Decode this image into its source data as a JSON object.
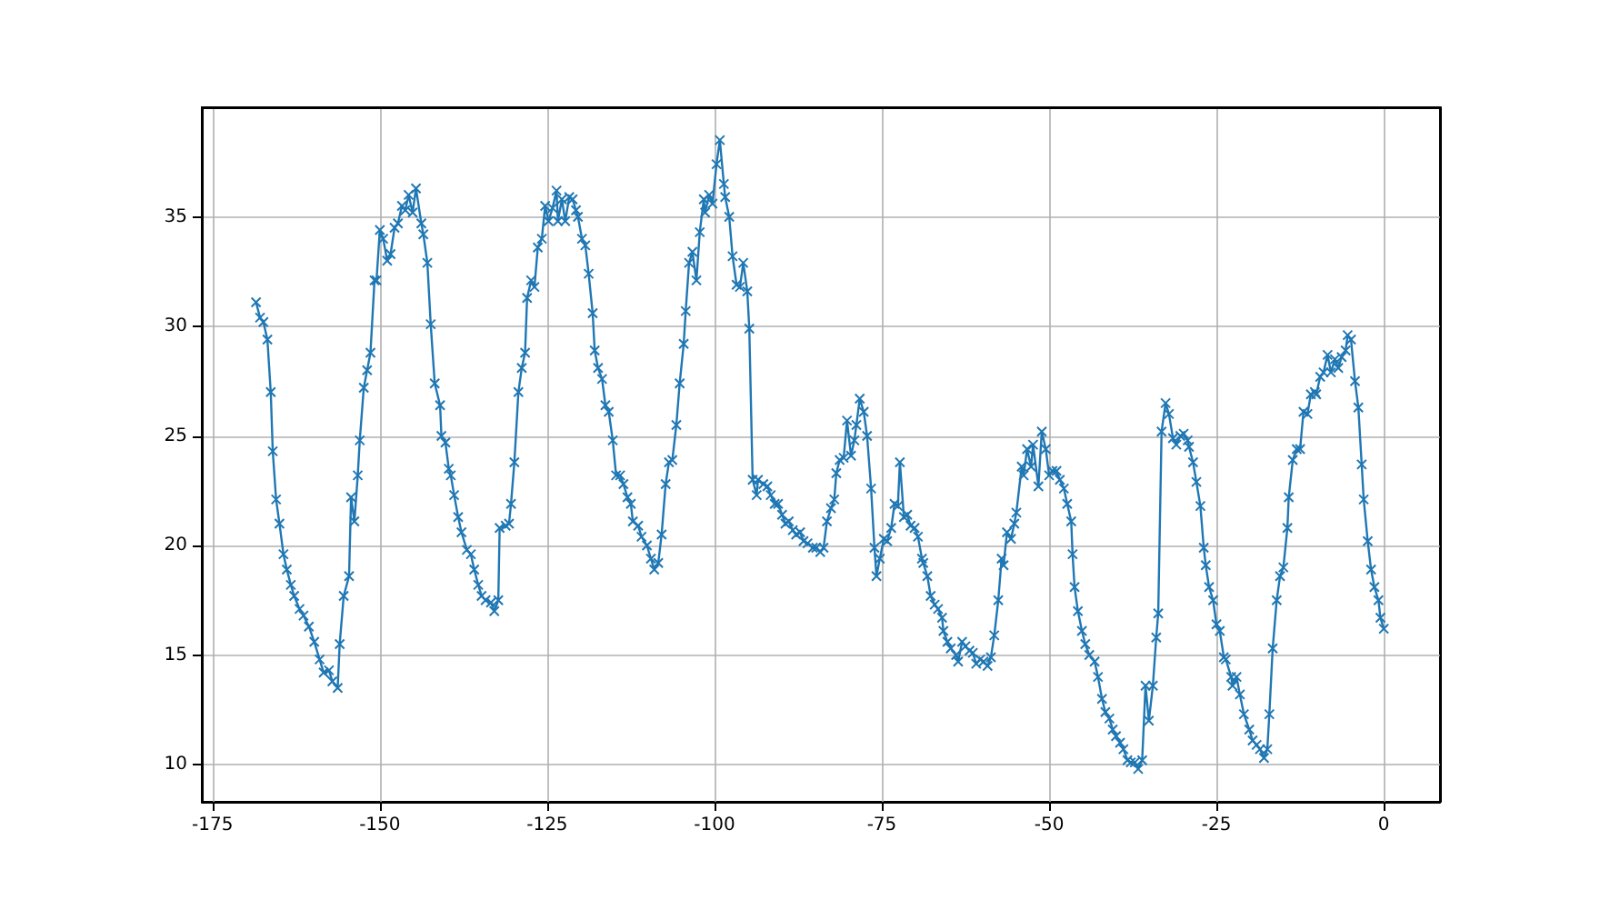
{
  "chart_data": {
    "type": "line",
    "color": "#1f77b4",
    "marker": "cross",
    "line_style": "solid",
    "grid": true,
    "xlim": [
      -176.6,
      8.4
    ],
    "xticks": [
      -175,
      -150,
      -125,
      -100,
      -75,
      -50,
      -25,
      0
    ],
    "ylim": [
      8.3,
      40.0
    ],
    "yticks": [
      10,
      15,
      20,
      25,
      30,
      35
    ],
    "x": [
      -168.5,
      -167.9,
      -167.4,
      -166.8,
      -166.3,
      -166.0,
      -165.5,
      -165.0,
      -164.4,
      -163.9,
      -163.3,
      -162.8,
      -162.0,
      -161.4,
      -160.6,
      -159.8,
      -159.0,
      -158.4,
      -157.6,
      -157.1,
      -156.3,
      -156.0,
      -155.4,
      -154.6,
      -154.3,
      -153.8,
      -153.3,
      -153.0,
      -152.4,
      -151.9,
      -151.4,
      -150.8,
      -150.5,
      -150.0,
      -149.5,
      -148.9,
      -148.4,
      -147.8,
      -147.3,
      -146.7,
      -146.2,
      -145.7,
      -145.1,
      -144.6,
      -143.8,
      -143.5,
      -142.9,
      -142.4,
      -141.8,
      -141.0,
      -140.8,
      -140.2,
      -139.7,
      -139.4,
      -138.9,
      -138.3,
      -137.8,
      -137.0,
      -136.4,
      -135.9,
      -135.3,
      -134.8,
      -134.2,
      -133.4,
      -132.9,
      -132.3,
      -132.1,
      -131.2,
      -130.7,
      -130.4,
      -129.9,
      -129.3,
      -128.8,
      -128.3,
      -128.0,
      -127.4,
      -126.9,
      -126.4,
      -125.8,
      -125.3,
      -124.8,
      -124.2,
      -123.6,
      -123.4,
      -122.8,
      -122.3,
      -121.7,
      -121.2,
      -120.7,
      -120.4,
      -119.8,
      -119.3,
      -118.8,
      -118.2,
      -117.9,
      -117.4,
      -116.8,
      -116.3,
      -115.8,
      -115.2,
      -114.7,
      -114.1,
      -113.6,
      -113.0,
      -112.5,
      -112.2,
      -111.4,
      -110.9,
      -110.1,
      -109.5,
      -109.0,
      -108.4,
      -107.9,
      -107.3,
      -106.8,
      -106.3,
      -105.7,
      -105.2,
      -104.6,
      -104.3,
      -103.8,
      -103.3,
      -102.7,
      -102.2,
      -101.6,
      -101.4,
      -100.8,
      -100.3,
      -99.7,
      -99.2,
      -98.6,
      -98.4,
      -97.8,
      -97.3,
      -96.7,
      -96.2,
      -95.7,
      -95.1,
      -94.8,
      -94.3,
      -93.7,
      -93.5,
      -92.7,
      -92.1,
      -91.6,
      -91.0,
      -90.5,
      -89.9,
      -89.4,
      -88.9,
      -88.3,
      -87.8,
      -87.2,
      -86.7,
      -86.1,
      -85.3,
      -84.8,
      -84.2,
      -83.7,
      -83.2,
      -82.6,
      -82.1,
      -81.8,
      -81.3,
      -80.7,
      -80.2,
      -79.6,
      -79.1,
      -78.8,
      -78.3,
      -77.7,
      -77.2,
      -76.6,
      -76.1,
      -75.8,
      -75.3,
      -74.7,
      -74.2,
      -73.6,
      -73.1,
      -72.6,
      -72.3,
      -71.7,
      -71.2,
      -70.7,
      -70.1,
      -69.6,
      -69.0,
      -68.8,
      -68.2,
      -67.7,
      -67.1,
      -66.6,
      -66.0,
      -65.8,
      -65.2,
      -64.7,
      -63.9,
      -63.6,
      -63.0,
      -62.5,
      -61.9,
      -61.4,
      -60.9,
      -60.3,
      -59.8,
      -59.2,
      -58.7,
      -58.2,
      -57.6,
      -57.1,
      -56.8,
      -56.3,
      -55.7,
      -55.2,
      -54.9,
      -54.1,
      -53.8,
      -53.3,
      -52.7,
      -52.4,
      -51.6,
      -51.1,
      -50.5,
      -50.0,
      -49.5,
      -48.9,
      -48.4,
      -47.8,
      -47.3,
      -46.7,
      -46.5,
      -46.2,
      -45.7,
      -45.1,
      -44.6,
      -44.0,
      -43.2,
      -42.7,
      -42.1,
      -41.6,
      -41.0,
      -40.5,
      -40.0,
      -39.4,
      -38.9,
      -38.3,
      -37.8,
      -37.2,
      -36.7,
      -36.1,
      -35.6,
      -35.1,
      -34.5,
      -34.0,
      -33.7,
      -33.2,
      -32.6,
      -32.1,
      -31.5,
      -31.0,
      -30.4,
      -29.9,
      -29.3,
      -29.1,
      -28.5,
      -28.0,
      -27.4,
      -26.9,
      -26.6,
      -26.1,
      -25.5,
      -25.0,
      -24.5,
      -23.9,
      -23.6,
      -22.8,
      -22.6,
      -22.0,
      -21.5,
      -20.9,
      -20.1,
      -19.6,
      -19.0,
      -18.5,
      -17.9,
      -17.4,
      -17.1,
      -16.6,
      -16.0,
      -15.5,
      -15.0,
      -14.4,
      -14.2,
      -13.6,
      -13.0,
      -12.5,
      -12.0,
      -11.4,
      -10.9,
      -10.3,
      -10.1,
      -9.5,
      -9.0,
      -8.4,
      -7.9,
      -7.3,
      -6.8,
      -6.3,
      -5.7,
      -5.4,
      -4.9,
      -4.3,
      -3.8,
      -3.3,
      -3.0,
      -2.4,
      -1.9,
      -1.4,
      -0.8,
      -0.5,
      0
    ],
    "values": [
      31.1,
      30.4,
      30.2,
      29.4,
      27.0,
      24.3,
      22.1,
      21.0,
      19.6,
      18.9,
      18.2,
      17.7,
      17.1,
      16.8,
      16.3,
      15.6,
      14.8,
      14.2,
      14.3,
      13.8,
      13.5,
      15.5,
      17.7,
      18.6,
      22.2,
      21.1,
      23.2,
      24.8,
      27.2,
      28.0,
      28.8,
      32.1,
      32.1,
      34.4,
      34.0,
      33.0,
      33.3,
      34.5,
      34.7,
      35.5,
      35.3,
      36.0,
      35.2,
      36.3,
      34.7,
      34.2,
      32.9,
      30.1,
      27.4,
      26.4,
      25.0,
      24.7,
      23.5,
      23.2,
      22.3,
      21.3,
      20.6,
      19.8,
      19.6,
      18.9,
      18.2,
      17.7,
      17.5,
      17.4,
      17.0,
      17.5,
      20.8,
      20.9,
      21.0,
      21.9,
      23.8,
      27.0,
      28.1,
      28.8,
      31.3,
      32.1,
      31.8,
      33.6,
      34.0,
      35.5,
      34.8,
      35.4,
      36.2,
      34.8,
      35.8,
      34.8,
      35.9,
      35.8,
      35.3,
      35.0,
      34.0,
      33.7,
      32.4,
      30.6,
      28.9,
      28.1,
      27.6,
      26.4,
      26.1,
      24.8,
      23.2,
      23.2,
      22.8,
      22.2,
      21.9,
      21.1,
      20.9,
      20.4,
      20.0,
      19.4,
      18.9,
      19.2,
      20.5,
      22.8,
      23.8,
      23.9,
      25.5,
      27.4,
      29.2,
      30.7,
      32.9,
      33.4,
      32.1,
      34.3,
      35.8,
      35.2,
      36.0,
      35.6,
      37.4,
      38.5,
      36.5,
      35.9,
      35.0,
      33.2,
      31.9,
      31.8,
      32.9,
      31.6,
      29.9,
      23.0,
      22.3,
      23.0,
      22.8,
      22.7,
      22.3,
      21.9,
      21.9,
      21.4,
      21.0,
      21.1,
      20.7,
      20.5,
      20.6,
      20.2,
      20.1,
      19.9,
      19.9,
      19.7,
      19.9,
      21.1,
      21.7,
      22.1,
      23.3,
      23.9,
      24.0,
      25.7,
      24.1,
      24.8,
      25.5,
      26.7,
      26.1,
      25.0,
      22.6,
      19.9,
      18.6,
      19.4,
      20.3,
      20.2,
      20.8,
      21.9,
      21.8,
      23.8,
      21.3,
      21.4,
      20.9,
      20.8,
      20.4,
      19.4,
      19.2,
      18.6,
      17.7,
      17.3,
      17.1,
      16.7,
      16.1,
      15.6,
      15.3,
      15.0,
      14.7,
      15.6,
      15.4,
      15.2,
      15.1,
      14.6,
      14.8,
      14.7,
      14.5,
      14.9,
      15.9,
      17.5,
      19.4,
      19.1,
      20.6,
      20.3,
      21.0,
      21.5,
      23.6,
      23.2,
      24.4,
      23.6,
      24.6,
      22.7,
      25.2,
      24.4,
      23.2,
      23.4,
      23.4,
      23.0,
      22.6,
      21.9,
      21.1,
      19.6,
      18.1,
      17.0,
      16.1,
      15.5,
      15.0,
      14.7,
      14.0,
      13.0,
      12.4,
      12.1,
      11.6,
      11.3,
      11.0,
      10.7,
      10.2,
      10.1,
      10.1,
      9.8,
      10.2,
      13.6,
      12.0,
      13.6,
      15.8,
      16.9,
      25.2,
      26.5,
      26.0,
      24.9,
      24.6,
      25.0,
      25.1,
      24.8,
      24.5,
      23.8,
      22.9,
      21.8,
      19.9,
      19.1,
      18.1,
      17.5,
      16.4,
      16.1,
      14.9,
      14.8,
      14.0,
      13.6,
      14.0,
      13.2,
      12.3,
      11.6,
      11.1,
      10.9,
      10.7,
      10.3,
      10.7,
      12.3,
      15.3,
      17.5,
      18.6,
      19.0,
      20.8,
      22.2,
      23.9,
      24.4,
      24.4,
      26.1,
      26.0,
      26.9,
      27.0,
      26.9,
      27.7,
      27.9,
      28.7,
      27.9,
      28.5,
      28.1,
      28.6,
      28.9,
      29.6,
      29.4,
      27.5,
      26.3,
      23.7,
      22.1,
      20.2,
      18.9,
      18.1,
      17.5,
      16.7,
      16.2
    ]
  }
}
